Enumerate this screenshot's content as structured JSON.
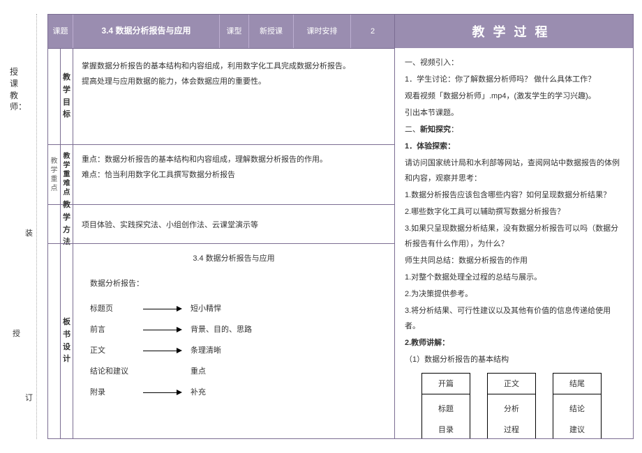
{
  "side": {
    "top_label": "授课教师：",
    "mark1": "装",
    "mark2": "授",
    "mark3": "订"
  },
  "header": {
    "topic_label": "课题",
    "topic_value": "3.4 数据分析报告与应用",
    "type_label": "课型",
    "type_value": "新授课",
    "schedule_label": "课时安排",
    "schedule_value": "2"
  },
  "target": {
    "side_mini": "教学目标",
    "label": "教学目标",
    "line1": "掌握数据分析报告的基本结构和内容组成，利用数字化工具完成数据分析报告。",
    "line2": "提高处理与应用数据的能力，体会数据应用的重要性。"
  },
  "focus": {
    "side_mini": "教学重点",
    "label": "教学重难点",
    "line1": "重点：数据分析报告的基本结构和内容组成，理解数据分析报告的作用。",
    "line2": "难点：恰当利用数字化工具撰写数据分析报告"
  },
  "method": {
    "label": "教学方法",
    "text": "项目体验、实践探究法、小组创作法、云课堂演示等"
  },
  "board": {
    "label": "板书设计",
    "title": "3.4 数据分析报告与应用",
    "intro": "数据分析报告：",
    "items": [
      {
        "left": "标题页",
        "right": "短小精悍",
        "arrow": true
      },
      {
        "left": "前言",
        "right": "背景、目的、思路",
        "arrow": true
      },
      {
        "left": "正文",
        "right": "条理清晰",
        "arrow": true
      },
      {
        "left": "结论和建议",
        "right": "重点",
        "arrow": false
      },
      {
        "left": "附录",
        "right": "补充",
        "arrow": true
      }
    ]
  },
  "teach": {
    "header": "教学过程",
    "s1_title": "一、视频引入：",
    "s1_l1": "1．学生讨论：你了解数据分析师吗？ 做什么具体工作？",
    "s1_l2": "观看视频「数据分析师」.mp4，(激发学生的学习兴趣)。",
    "s1_l3": "引出本节课题。",
    "s2_title": "二、新知探究：",
    "s2_sub": "1．体验探索：",
    "s2_l1": "请访问国家统计局和水利部等网站，查阅网站中数据报告的体例和内容，观察并思考：",
    "s2_l2": "1.数据分析报告应该包含哪些内容？如何呈现数据分析结果？",
    "s2_l3": "2.哪些数字化工具可以辅助撰写数据分析报告？",
    "s2_l4": "3.如果只呈现数据分析结果，没有数据分析报告可以吗（数据分析报告有什么作用），为什么？",
    "s2_sum": "师生共同总结：数据分析报告的作用",
    "s2_p1": "1.对整个数据处理全过程的总结与展示。",
    "s2_p2": "2.为决策提供参考。",
    "s2_p3": "3.将分析结果、可行性建议以及其他有价值的信息传递给使用者。",
    "s3_title": "2.教师讲解：",
    "s3_l1": "（1）数据分析报告的基本结构",
    "boxes": [
      {
        "top": "开篇",
        "b1": "标题",
        "b2": "目录"
      },
      {
        "top": "正文",
        "b1": "分析",
        "b2": "过程"
      },
      {
        "top": "结尾",
        "b1": "结论",
        "b2": "建议"
      }
    ]
  },
  "colors": {
    "purple": "#9a8db0",
    "border": "#7b6d92"
  }
}
